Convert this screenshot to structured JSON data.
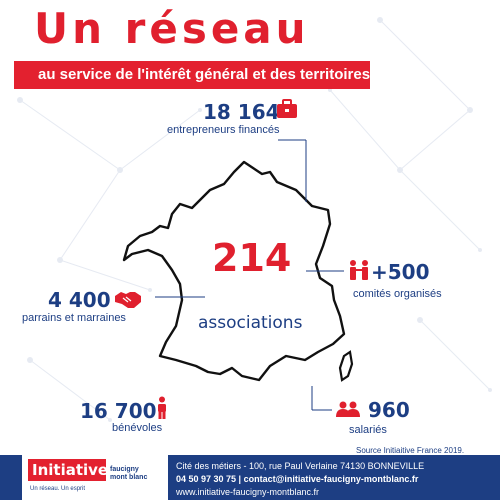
{
  "title": "Un réseau",
  "subtitle": "au service de l'intérêt général et des territoires",
  "center": {
    "number": "214",
    "label": "associations"
  },
  "stats": {
    "entrepreneurs": {
      "value": "18 164",
      "label": "entrepreneurs financés",
      "icon": "briefcase-icon"
    },
    "comites": {
      "value": "+500",
      "label": "comités organisés",
      "icon": "people-handshake-icon"
    },
    "parrains": {
      "value": "4 400",
      "label": "parrains et marraines",
      "icon": "handshake-icon"
    },
    "benevoles": {
      "value": "16 700",
      "label": "bénévoles",
      "icon": "person-icon"
    },
    "salaries": {
      "value": "960",
      "label": "salariés",
      "icon": "group-icon"
    }
  },
  "source": "Source Initiaitive France 2019.",
  "footer": {
    "logo_main": "Initiative",
    "logo_side_1": "faucigny",
    "logo_side_2": "mont blanc",
    "logo_tagline": "Un réseau. Un esprit",
    "address": "Cité des métiers - 100, rue Paul Verlaine 74130 BONNEVILLE",
    "contact": "04 50 97 30 75 | contact@initiative-faucigny-montblanc.fr",
    "website": "www.initiative-faucigny-montblanc.fr"
  },
  "colors": {
    "red": "#e0202e",
    "navy": "#1d3e83"
  }
}
